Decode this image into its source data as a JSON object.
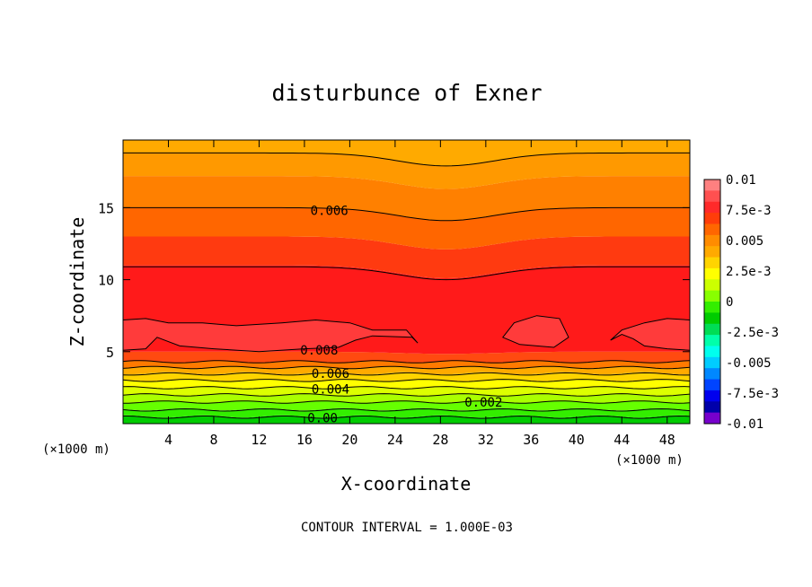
{
  "chart_data": {
    "type": "contour",
    "title": "disturbunce of Exner",
    "xlabel": "X-coordinate",
    "ylabel": "Z-coordinate",
    "x_unit_left": "(×1000 m)",
    "x_unit_right": "(×1000 m)",
    "xlim": [
      0,
      50
    ],
    "ylim": [
      0,
      19.7
    ],
    "x_ticks": [
      4,
      8,
      12,
      16,
      20,
      24,
      28,
      32,
      36,
      40,
      44,
      48
    ],
    "y_ticks": [
      5,
      10,
      15
    ],
    "grid": false,
    "contour_interval_text": "CONTOUR INTERVAL = 1.000E-03",
    "contour_labels": [
      {
        "text": "0.006",
        "x": 18.2,
        "z": 14.8
      },
      {
        "text": "0.008",
        "x": 17.3,
        "z": 5.1
      },
      {
        "text": "0.006",
        "x": 18.3,
        "z": 3.5
      },
      {
        "text": "0.004",
        "x": 18.3,
        "z": 2.4
      },
      {
        "text": "0.002",
        "x": 31.8,
        "z": 1.5
      },
      {
        "text": "0.00",
        "x": 17.6,
        "z": 0.4
      }
    ],
    "colorbar": {
      "labels": [
        "0.01",
        "7.5e-3",
        "0.005",
        "2.5e-3",
        "0",
        "-2.5e-3",
        "-0.005",
        "-7.5e-3",
        "-0.01"
      ],
      "colors": [
        "#ff8080",
        "#ff5050",
        "#ff2a2a",
        "#ff3d0a",
        "#ff6600",
        "#ff8c00",
        "#ffaa00",
        "#ffd400",
        "#ffff00",
        "#ccff00",
        "#88ff00",
        "#33ee00",
        "#00cc00",
        "#00dd55",
        "#00ffaa",
        "#00ffee",
        "#00ccff",
        "#0088ff",
        "#0044ff",
        "#0000ee",
        "#0000aa",
        "#7700cc"
      ]
    },
    "bands": [
      {
        "z": 0.0,
        "color": "#00cc00"
      },
      {
        "z": 0.5,
        "color": "#33ee00"
      },
      {
        "z": 1.0,
        "color": "#66ff00"
      },
      {
        "z": 1.5,
        "color": "#aaff00"
      },
      {
        "z": 2.0,
        "color": "#ddff00"
      },
      {
        "z": 2.5,
        "color": "#ffff00"
      },
      {
        "z": 3.0,
        "color": "#ffd400"
      },
      {
        "z": 3.5,
        "color": "#ffaa00"
      },
      {
        "z": 3.9,
        "color": "#ff7a00"
      },
      {
        "z": 4.3,
        "color": "#ff4a10"
      },
      {
        "z": 5.0,
        "color": "#ff1a1a"
      },
      {
        "z": 11.0,
        "color": "#ff3a10"
      },
      {
        "z": 13.0,
        "color": "#ff6600"
      },
      {
        "z": 15.0,
        "color": "#ff8000"
      },
      {
        "z": 17.2,
        "color": "#ff9900"
      },
      {
        "z": 18.8,
        "color": "#ffaa00"
      }
    ]
  }
}
